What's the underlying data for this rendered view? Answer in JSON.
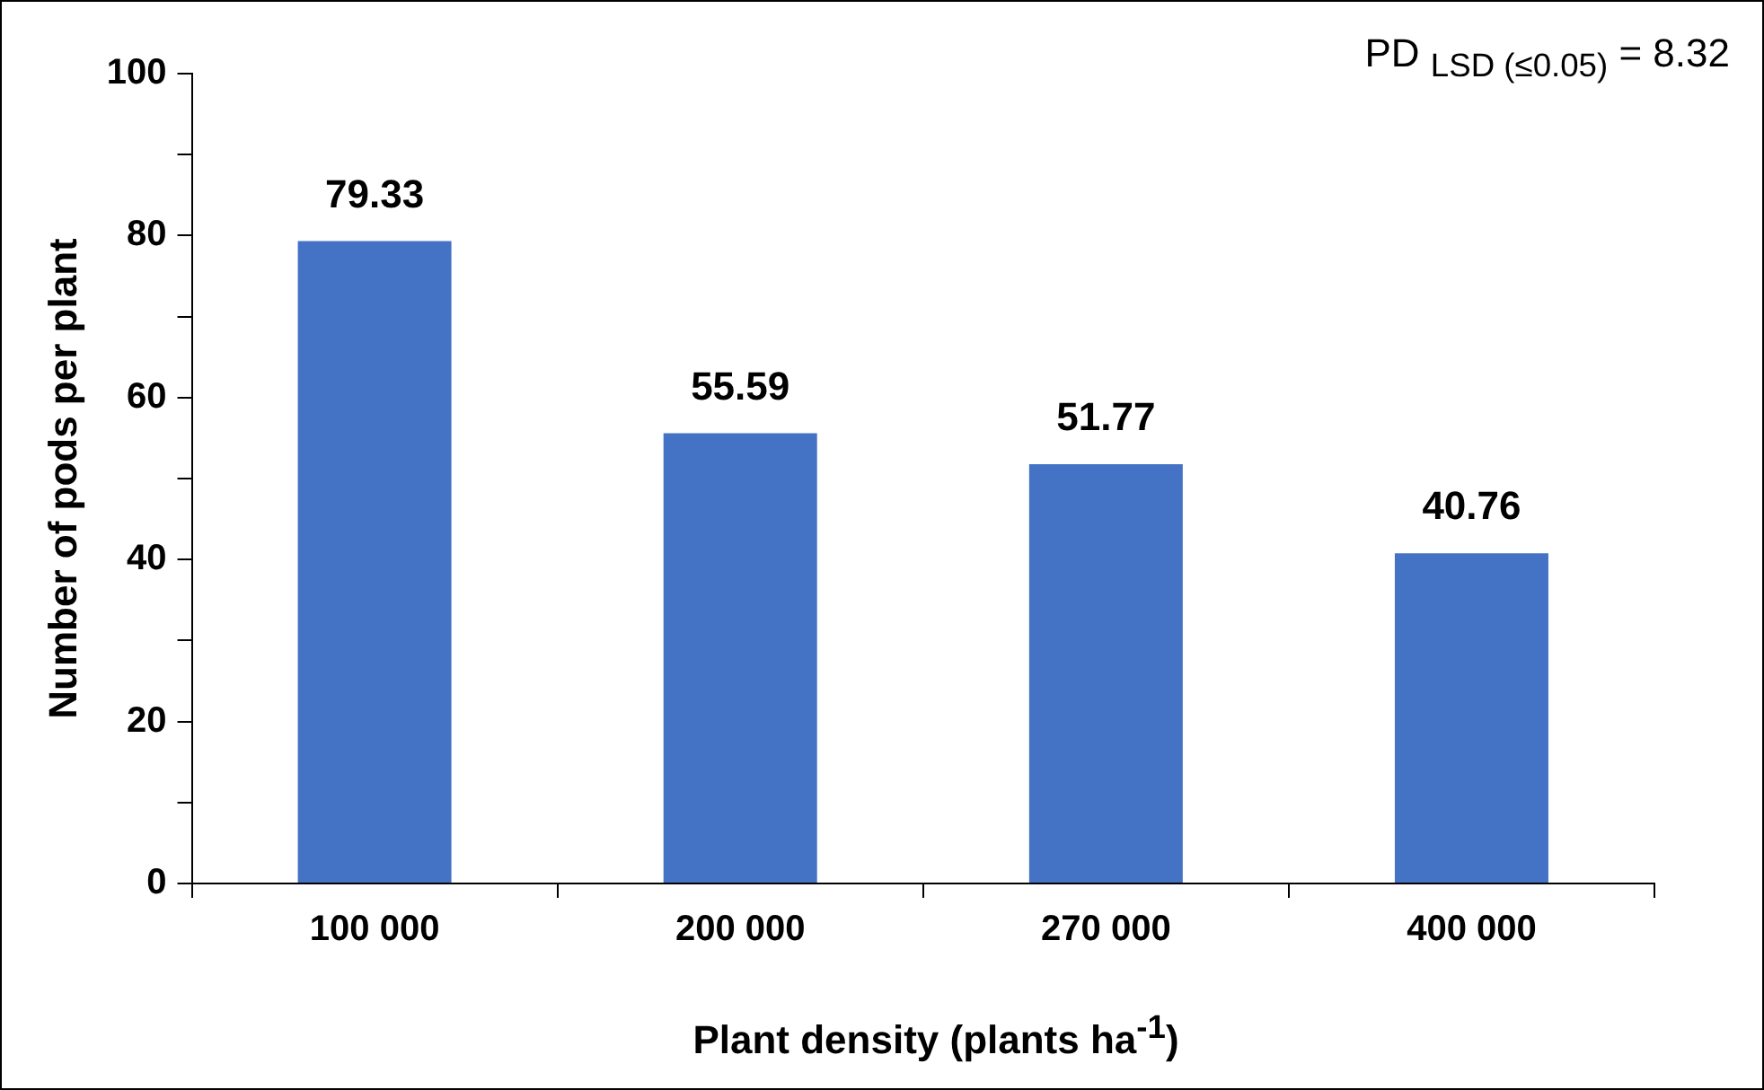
{
  "chart_data": {
    "type": "bar",
    "categories": [
      "100 000",
      "200 000",
      "270 000",
      "400 000"
    ],
    "values": [
      79.33,
      55.59,
      51.77,
      40.76
    ],
    "color": "#4472c4",
    "ylim": [
      0,
      100
    ],
    "yticks": [
      0,
      {
        "value": 10,
        "label": null
      },
      20,
      {
        "value": 30,
        "label": null
      },
      40,
      {
        "value": 50,
        "label": null
      },
      60,
      {
        "value": 70,
        "label": null
      },
      80,
      {
        "value": 90,
        "label": null
      },
      100
    ],
    "ylabel": "Number of pods per plant",
    "xlabel": "Plant density (plants ha$^{-1}$)",
    "annotations": [
      "PD $_{LSD (≤0.05)}$ = 8.32"
    ],
    "data_labels": true,
    "grid": false,
    "legend": false
  }
}
